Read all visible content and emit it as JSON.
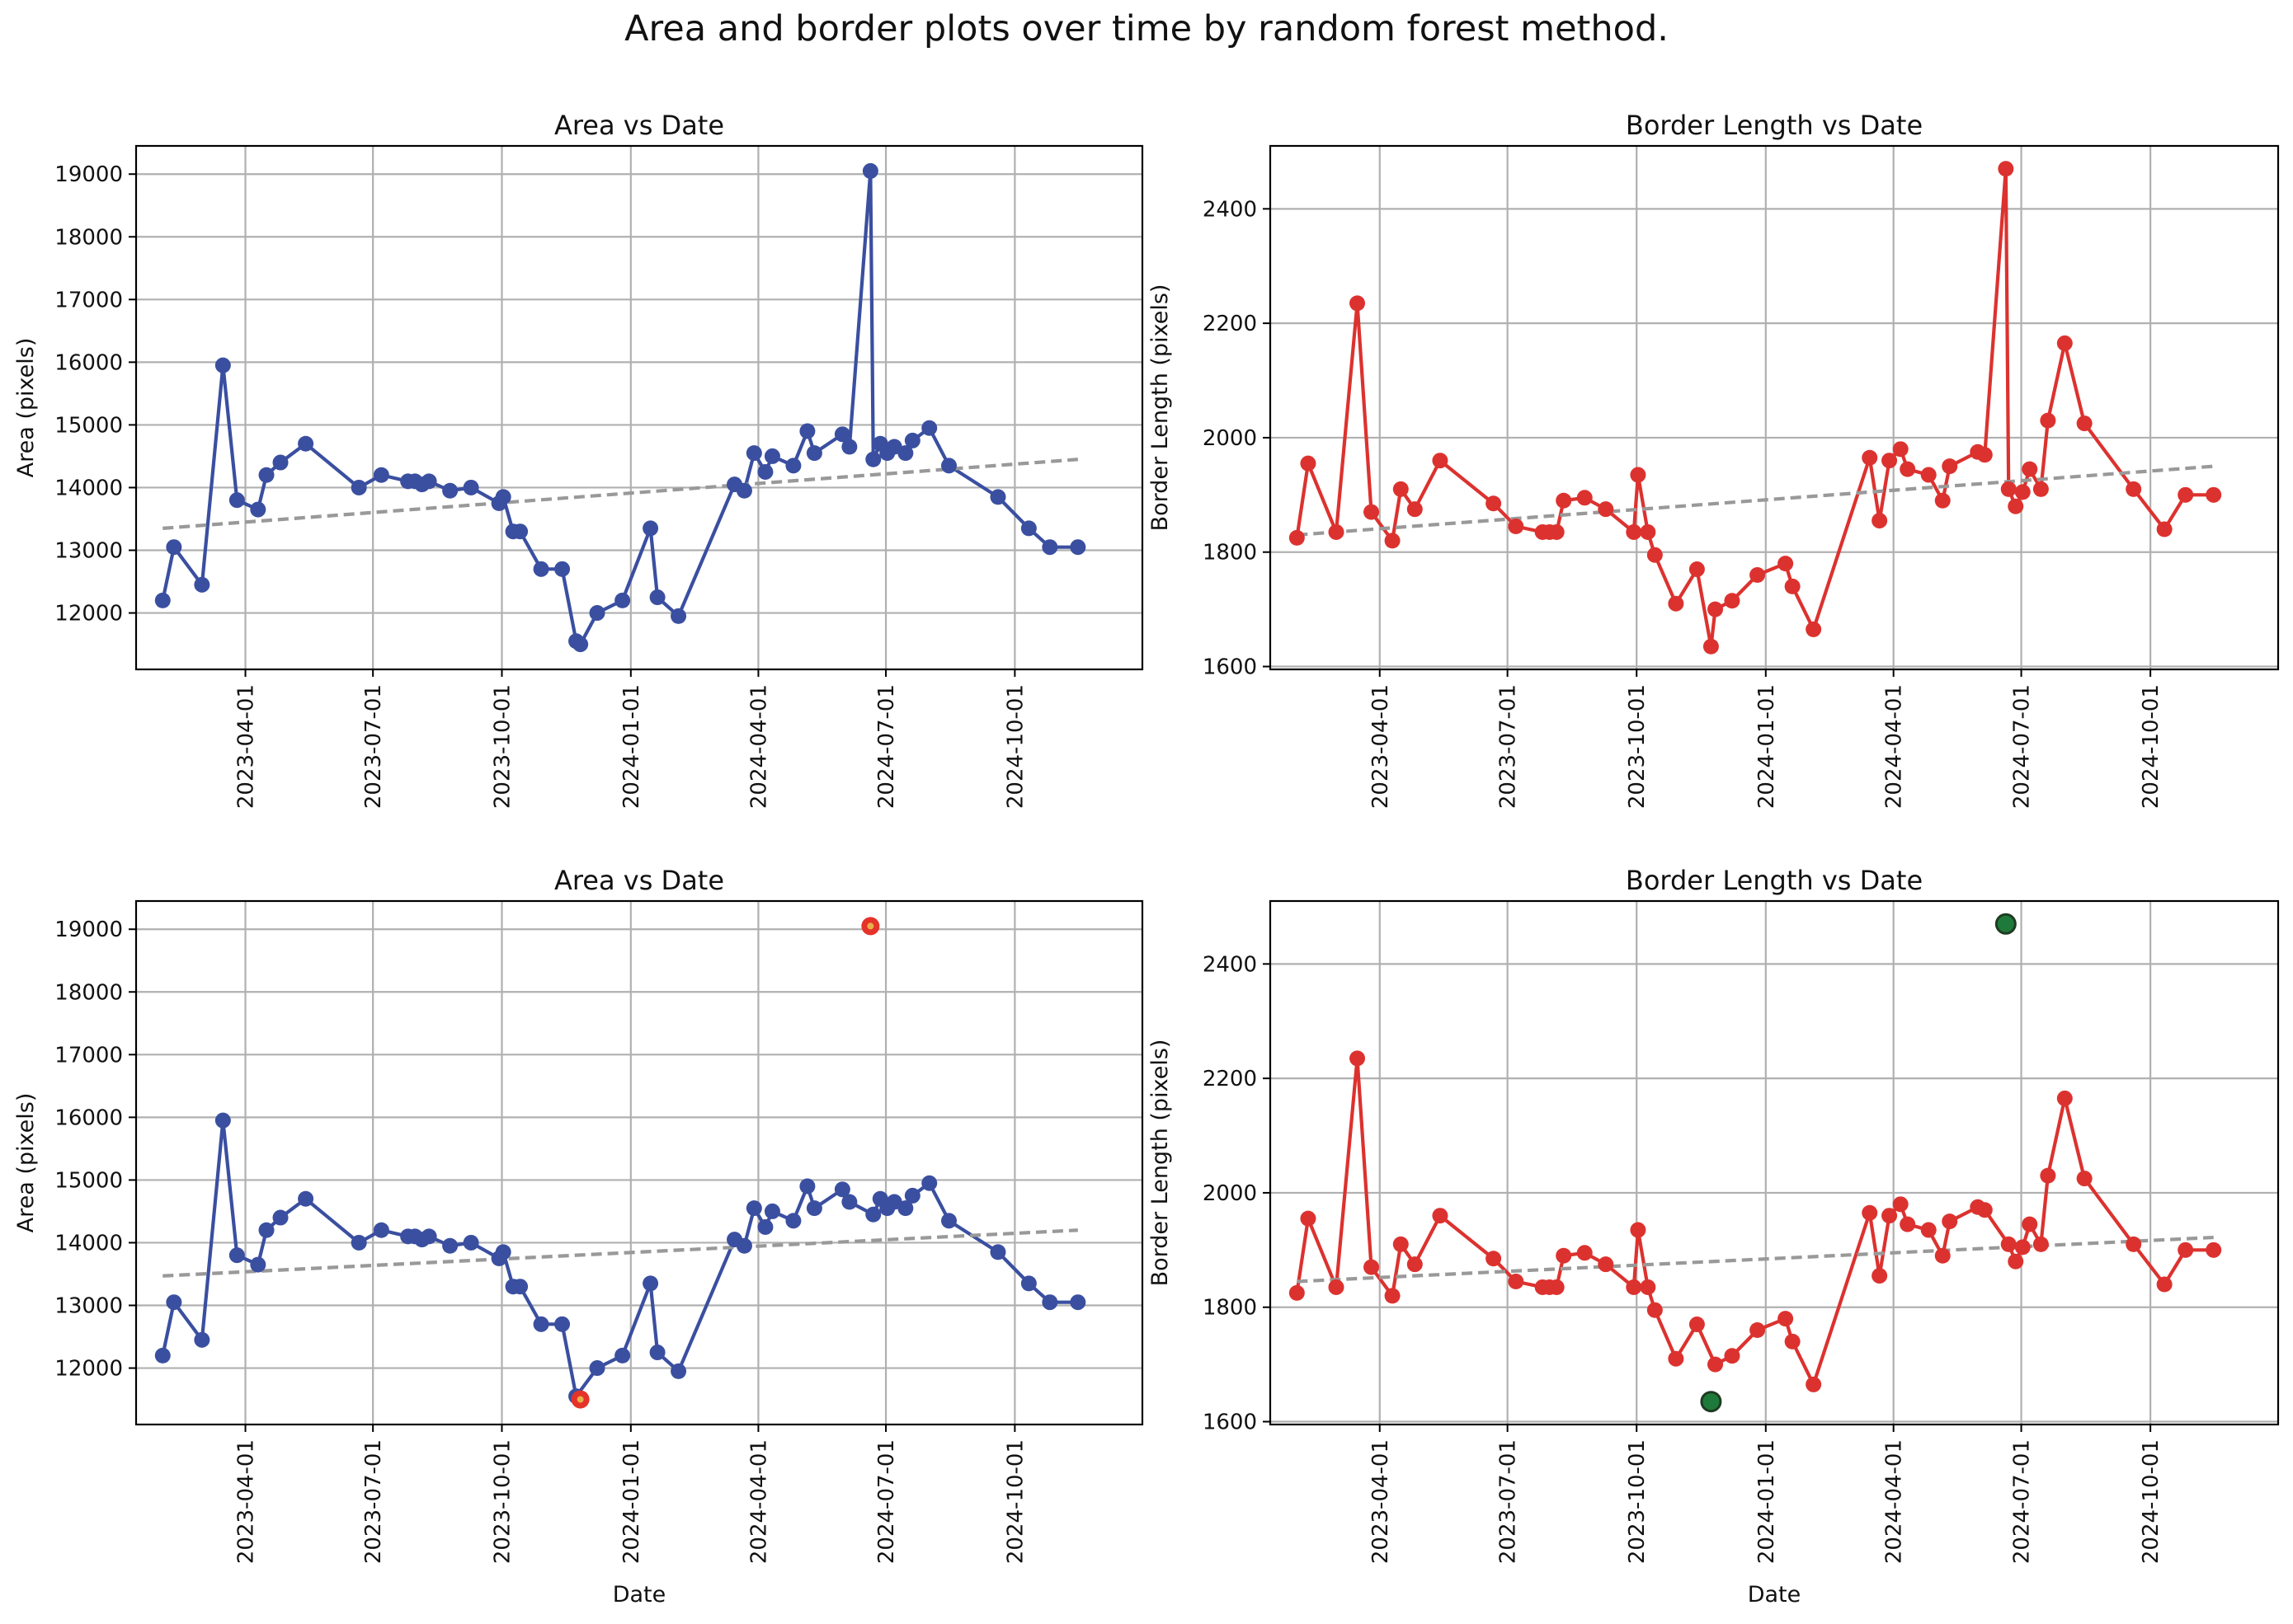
{
  "suptitle": "Area and border plots over time by random forest method.",
  "colors": {
    "area_line": "#3a4fa0",
    "border_line": "#dc322f",
    "trend": "#999999",
    "area_outlier": "#e5332a",
    "area_outlier_center": "#e8b04a",
    "border_outlier": "#1e7a3a",
    "border_outlier_edge": "#1f3b22",
    "grid": "#b0b0b0"
  },
  "x_ticks": [
    "2023-04-01",
    "2023-07-01",
    "2023-10-01",
    "2024-01-01",
    "2024-04-01",
    "2024-07-01",
    "2024-10-01"
  ],
  "chart_data": [
    {
      "id": "area_top",
      "type": "line",
      "title": "Area vs Date",
      "xlabel": "Date",
      "ylabel": "Area (pixels)",
      "grid": true,
      "xlim": [
        "2023-01-13",
        "2024-12-31"
      ],
      "ylim": [
        11100,
        19450
      ],
      "y_ticks": [
        12000,
        13000,
        14000,
        15000,
        16000,
        17000,
        18000,
        19000
      ],
      "x": [
        "2023-02-01",
        "2023-02-09",
        "2023-03-01",
        "2023-03-16",
        "2023-03-26",
        "2023-04-10",
        "2023-04-16",
        "2023-04-26",
        "2023-05-14",
        "2023-06-21",
        "2023-07-07",
        "2023-07-26",
        "2023-07-31",
        "2023-08-05",
        "2023-08-10",
        "2023-08-25",
        "2023-09-09",
        "2023-09-29",
        "2023-10-02",
        "2023-10-09",
        "2023-10-14",
        "2023-10-29",
        "2023-11-13",
        "2023-11-23",
        "2023-11-26",
        "2023-12-08",
        "2023-12-26",
        "2024-01-15",
        "2024-01-20",
        "2024-02-04",
        "2024-03-15",
        "2024-03-22",
        "2024-03-29",
        "2024-04-06",
        "2024-04-11",
        "2024-04-26",
        "2024-05-06",
        "2024-05-11",
        "2024-05-31",
        "2024-06-05",
        "2024-06-20",
        "2024-06-22",
        "2024-06-27",
        "2024-07-02",
        "2024-07-07",
        "2024-07-15",
        "2024-07-20",
        "2024-08-01",
        "2024-08-15",
        "2024-09-19",
        "2024-10-11",
        "2024-10-26",
        "2024-11-15"
      ],
      "series": [
        {
          "values": [
            12200,
            13050,
            12450,
            15950,
            13800,
            13650,
            14200,
            14400,
            14700,
            14000,
            14200,
            14100,
            14100,
            14050,
            14100,
            13950,
            14000,
            13750,
            13850,
            13300,
            13300,
            12700,
            12700,
            11550,
            11500,
            12000,
            12200,
            13350,
            12250,
            11950,
            14050,
            13950,
            14550,
            14250,
            14500,
            14350,
            14900,
            14550,
            14850,
            14650,
            19050,
            14450,
            14700,
            14550,
            14650,
            14550,
            14750,
            14950,
            14350,
            13850,
            13350,
            13050,
            13050
          ]
        }
      ],
      "trend": {
        "start": [
          "2023-02-01",
          13350
        ],
        "end": [
          "2024-11-15",
          14450
        ]
      },
      "outliers": []
    },
    {
      "id": "border_top",
      "type": "line",
      "title": "Border Length vs Date",
      "xlabel": "Date",
      "ylabel": "Border Length (pixels)",
      "grid": true,
      "xlim": [
        "2023-01-13",
        "2024-12-31"
      ],
      "ylim": [
        1595,
        2510
      ],
      "y_ticks": [
        1600,
        1800,
        2000,
        2200,
        2400
      ],
      "x": [
        "2023-02-01",
        "2023-02-09",
        "2023-03-01",
        "2023-03-16",
        "2023-03-26",
        "2023-04-10",
        "2023-04-16",
        "2023-04-26",
        "2023-05-14",
        "2023-06-21",
        "2023-07-07",
        "2023-07-26",
        "2023-07-31",
        "2023-08-05",
        "2023-08-10",
        "2023-08-25",
        "2023-09-09",
        "2023-09-29",
        "2023-10-02",
        "2023-10-09",
        "2023-10-14",
        "2023-10-29",
        "2023-11-13",
        "2023-11-23",
        "2023-11-26",
        "2023-12-08",
        "2023-12-26",
        "2024-01-15",
        "2024-01-20",
        "2024-02-04",
        "2024-03-15",
        "2024-03-22",
        "2024-03-29",
        "2024-04-06",
        "2024-04-11",
        "2024-04-26",
        "2024-05-06",
        "2024-05-11",
        "2024-05-31",
        "2024-06-05",
        "2024-06-20",
        "2024-06-22",
        "2024-06-27",
        "2024-07-02",
        "2024-07-07",
        "2024-07-15",
        "2024-07-20",
        "2024-08-01",
        "2024-08-15",
        "2024-09-19",
        "2024-10-11",
        "2024-10-26",
        "2024-11-15"
      ],
      "series": [
        {
          "values": [
            1825,
            1955,
            1835,
            2235,
            1870,
            1820,
            1910,
            1875,
            1960,
            1885,
            1845,
            1835,
            1835,
            1835,
            1890,
            1895,
            1875,
            1835,
            1935,
            1835,
            1795,
            1710,
            1770,
            1635,
            1700,
            1715,
            1760,
            1780,
            1740,
            1665,
            1965,
            1855,
            1960,
            1980,
            1945,
            1935,
            1890,
            1950,
            1975,
            1970,
            2470,
            1910,
            1880,
            1905,
            1945,
            1910,
            2030,
            2165,
            2025,
            1910,
            1840,
            1900,
            1900
          ]
        }
      ],
      "trend": {
        "start": [
          "2023-02-01",
          1830
        ],
        "end": [
          "2024-11-15",
          1950
        ]
      },
      "outliers": []
    },
    {
      "id": "area_bottom",
      "type": "line",
      "title": "Area vs Date",
      "xlabel": "Date",
      "ylabel": "Area (pixels)",
      "grid": true,
      "xlim": [
        "2023-01-13",
        "2024-12-31"
      ],
      "ylim": [
        11100,
        19450
      ],
      "y_ticks": [
        12000,
        13000,
        14000,
        15000,
        16000,
        17000,
        18000,
        19000
      ],
      "x": [
        "2023-02-01",
        "2023-02-09",
        "2023-03-01",
        "2023-03-16",
        "2023-03-26",
        "2023-04-10",
        "2023-04-16",
        "2023-04-26",
        "2023-05-14",
        "2023-06-21",
        "2023-07-07",
        "2023-07-26",
        "2023-07-31",
        "2023-08-05",
        "2023-08-10",
        "2023-08-25",
        "2023-09-09",
        "2023-09-29",
        "2023-10-02",
        "2023-10-09",
        "2023-10-14",
        "2023-10-29",
        "2023-11-13",
        "2023-11-23",
        "2023-12-08",
        "2023-12-26",
        "2024-01-15",
        "2024-01-20",
        "2024-02-04",
        "2024-03-15",
        "2024-03-22",
        "2024-03-29",
        "2024-04-06",
        "2024-04-11",
        "2024-04-26",
        "2024-05-06",
        "2024-05-11",
        "2024-05-31",
        "2024-06-05",
        "2024-06-22",
        "2024-06-27",
        "2024-07-02",
        "2024-07-07",
        "2024-07-15",
        "2024-07-20",
        "2024-08-01",
        "2024-08-15",
        "2024-09-19",
        "2024-10-11",
        "2024-10-26",
        "2024-11-15"
      ],
      "series": [
        {
          "values": [
            12200,
            13050,
            12450,
            15950,
            13800,
            13650,
            14200,
            14400,
            14700,
            14000,
            14200,
            14100,
            14100,
            14050,
            14100,
            13950,
            14000,
            13750,
            13850,
            13300,
            13300,
            12700,
            12700,
            11550,
            12000,
            12200,
            13350,
            12250,
            11950,
            14050,
            13950,
            14550,
            14250,
            14500,
            14350,
            14900,
            14550,
            14850,
            14650,
            14450,
            14700,
            14550,
            14650,
            14550,
            14750,
            14950,
            14350,
            13850,
            13350,
            13050,
            13050
          ]
        }
      ],
      "trend": {
        "start": [
          "2023-02-01",
          13470
        ],
        "end": [
          "2024-11-15",
          14200
        ]
      },
      "outliers": [
        {
          "x": "2024-06-20",
          "y": 19050
        },
        {
          "x": "2023-11-26",
          "y": 11500
        }
      ]
    },
    {
      "id": "border_bottom",
      "type": "line",
      "title": "Border Length vs Date",
      "xlabel": "Date",
      "ylabel": "Border Length (pixels)",
      "grid": true,
      "xlim": [
        "2023-01-13",
        "2024-12-31"
      ],
      "ylim": [
        1595,
        2510
      ],
      "y_ticks": [
        1600,
        1800,
        2000,
        2200,
        2400
      ],
      "x": [
        "2023-02-01",
        "2023-02-09",
        "2023-03-01",
        "2023-03-16",
        "2023-03-26",
        "2023-04-10",
        "2023-04-16",
        "2023-04-26",
        "2023-05-14",
        "2023-06-21",
        "2023-07-07",
        "2023-07-26",
        "2023-07-31",
        "2023-08-05",
        "2023-08-10",
        "2023-08-25",
        "2023-09-09",
        "2023-09-29",
        "2023-10-02",
        "2023-10-09",
        "2023-10-14",
        "2023-10-29",
        "2023-11-13",
        "2023-11-26",
        "2023-12-08",
        "2023-12-26",
        "2024-01-15",
        "2024-01-20",
        "2024-02-04",
        "2024-03-15",
        "2024-03-22",
        "2024-03-29",
        "2024-04-06",
        "2024-04-11",
        "2024-04-26",
        "2024-05-06",
        "2024-05-11",
        "2024-05-31",
        "2024-06-05",
        "2024-06-22",
        "2024-06-27",
        "2024-07-02",
        "2024-07-07",
        "2024-07-15",
        "2024-07-20",
        "2024-08-01",
        "2024-08-15",
        "2024-09-19",
        "2024-10-11",
        "2024-10-26",
        "2024-11-15"
      ],
      "series": [
        {
          "values": [
            1825,
            1955,
            1835,
            2235,
            1870,
            1820,
            1910,
            1875,
            1960,
            1885,
            1845,
            1835,
            1835,
            1835,
            1890,
            1895,
            1875,
            1835,
            1935,
            1835,
            1795,
            1710,
            1770,
            1700,
            1715,
            1760,
            1780,
            1740,
            1665,
            1965,
            1855,
            1960,
            1980,
            1945,
            1935,
            1890,
            1950,
            1975,
            1970,
            1910,
            1880,
            1905,
            1945,
            1910,
            2030,
            2165,
            2025,
            1910,
            1840,
            1900,
            1900
          ]
        }
      ],
      "trend": {
        "start": [
          "2023-02-01",
          1845
        ],
        "end": [
          "2024-11-15",
          1922
        ]
      },
      "outliers": [
        {
          "x": "2024-06-20",
          "y": 2470
        },
        {
          "x": "2023-11-23",
          "y": 1635
        }
      ]
    }
  ]
}
